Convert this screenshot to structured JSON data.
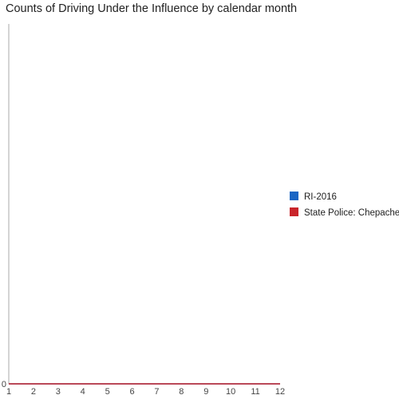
{
  "chart_data": {
    "type": "line",
    "title": "Counts of Driving Under the Influence by calendar month",
    "xlabel": "",
    "ylabel": "",
    "x": [
      1,
      2,
      3,
      4,
      5,
      6,
      7,
      8,
      9,
      10,
      11,
      12
    ],
    "xlim": [
      1,
      12
    ],
    "ylim": [
      0,
      1
    ],
    "y_ticks": [
      0
    ],
    "grid": false,
    "legend_position": "right",
    "series": [
      {
        "name": "RI-2016",
        "color": "#1c66c4",
        "values": [
          0,
          0,
          0,
          0,
          0,
          0,
          0,
          0,
          0,
          0,
          0,
          0
        ]
      },
      {
        "name": "State Police: Chepachet",
        "color": "#c9252b",
        "values": [
          0,
          0,
          0,
          0,
          0,
          0,
          0,
          0,
          0,
          0,
          0,
          0
        ]
      }
    ]
  }
}
